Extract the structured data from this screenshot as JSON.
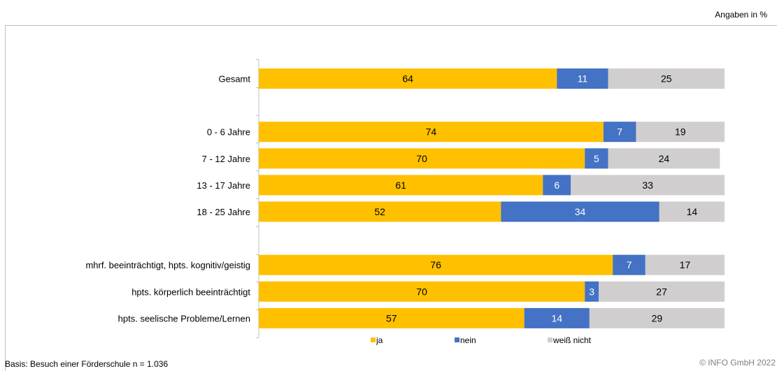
{
  "unit_note": "Angaben in %",
  "basis_note": "Basis: Besuch einer Förderschule n = 1.036",
  "copyright": "© INFO GmbH 2022",
  "colors": {
    "ja": "#FFC000",
    "nein": "#4472C4",
    "weiss_nicht": "#D0CECE"
  },
  "chart_data": {
    "type": "bar",
    "orientation": "horizontal",
    "stacked": true,
    "xlim": [
      0,
      100
    ],
    "categories": [
      "Gesamt",
      "",
      "0 - 6 Jahre",
      "7 - 12 Jahre",
      "13 - 17 Jahre",
      "18 - 25 Jahre",
      "",
      "mhrf. beeinträchtigt, hpts. kognitiv/geistig",
      "hpts. körperlich beeinträchtigt",
      "hpts. seelische Probleme/Lernen"
    ],
    "series": [
      {
        "name": "ja",
        "color": "#FFC000",
        "label_color": "#000000",
        "values": [
          64,
          null,
          74,
          70,
          61,
          52,
          null,
          76,
          70,
          57
        ]
      },
      {
        "name": "nein",
        "color": "#4472C4",
        "label_color": "#ffffff",
        "values": [
          11,
          null,
          7,
          5,
          6,
          34,
          null,
          7,
          3,
          14
        ]
      },
      {
        "name": "weiß nicht",
        "color": "#D0CECE",
        "label_color": "#000000",
        "values": [
          25,
          null,
          19,
          24,
          33,
          14,
          null,
          17,
          27,
          29
        ]
      }
    ],
    "legend": "bottom",
    "grid": false
  }
}
